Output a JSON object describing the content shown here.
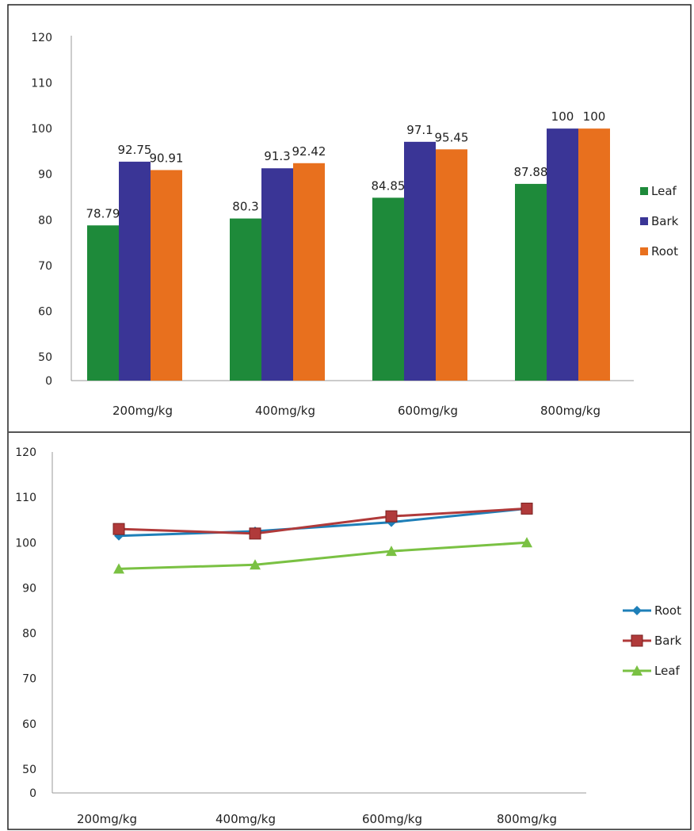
{
  "chart_data": [
    {
      "type": "bar",
      "categories": [
        "200mg/kg",
        "400mg/kg",
        "600mg/kg",
        "800mg/kg"
      ],
      "series": [
        {
          "name": "Leaf",
          "values": [
            78.79,
            80.3,
            84.85,
            87.88
          ],
          "labels": [
            "78.79",
            "80.3",
            "84.85",
            "87.88"
          ],
          "color": "#1e8a3a"
        },
        {
          "name": "Bark",
          "values": [
            92.75,
            91.3,
            97.1,
            100
          ],
          "labels": [
            "92.75",
            "91.3",
            "97.1",
            "100"
          ],
          "color": "#3a3596"
        },
        {
          "name": "Root",
          "values": [
            90.91,
            92.42,
            95.45,
            100
          ],
          "labels": [
            "90.91",
            "92.42",
            "95.45",
            "100"
          ],
          "color": "#e8701e"
        }
      ],
      "y_ticks": [
        "0",
        "50",
        "60",
        "70",
        "80",
        "90",
        "100",
        "110",
        "120"
      ],
      "legend_position": "right",
      "grid": false
    },
    {
      "type": "line",
      "categories": [
        "200mg/kg",
        "400mg/kg",
        "600mg/kg",
        "800mg/kg"
      ],
      "series": [
        {
          "name": "Root",
          "values": [
            101.5,
            102.5,
            104.5,
            107.5
          ],
          "color": "#1e7fb8",
          "marker": "diamond"
        },
        {
          "name": "Bark",
          "values": [
            103,
            102,
            105.8,
            107.5
          ],
          "color": "#b03a3a",
          "marker": "square"
        },
        {
          "name": "Leaf",
          "values": [
            94.2,
            95.1,
            98.1,
            100
          ],
          "color": "#7ac143",
          "marker": "triangle"
        }
      ],
      "y_ticks": [
        "0",
        "50",
        "60",
        "70",
        "80",
        "90",
        "100",
        "110",
        "120"
      ],
      "legend_position": "right",
      "grid": false
    }
  ]
}
